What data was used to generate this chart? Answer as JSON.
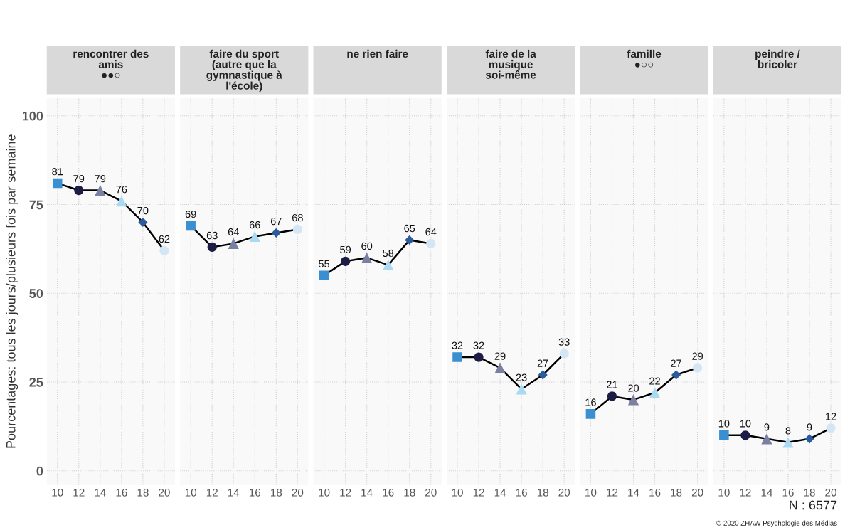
{
  "chart_data": [
    {
      "type": "line",
      "title": "rencontrer des\namis\n●●○",
      "ylabel": "Pourcentages: tous les jours/plusieurs fois par semaine",
      "x": [
        10,
        12,
        14,
        16,
        18,
        20
      ],
      "xlim": [
        9,
        21
      ],
      "xticks": [
        10,
        12,
        14,
        16,
        18,
        20
      ],
      "ylim": [
        -4,
        105
      ],
      "yticks": [
        0,
        25,
        50,
        75,
        100
      ],
      "grid": true,
      "series": [
        {
          "type": "line",
          "color": "#000000",
          "marker": "none",
          "values": [
            81,
            79,
            79,
            76,
            70,
            62
          ]
        },
        {
          "type": "scatter",
          "color": "#3a8fd0",
          "marker": "square",
          "x": [
            10
          ],
          "values": [
            81
          ],
          "value_labels": [
            "81"
          ]
        },
        {
          "type": "scatter",
          "color": "#1c1c45",
          "marker": "circle",
          "x": [
            12
          ],
          "values": [
            79
          ],
          "value_labels": [
            "79"
          ]
        },
        {
          "type": "scatter",
          "color": "#7b80a3",
          "marker": "triangle",
          "x": [
            14
          ],
          "values": [
            79
          ],
          "value_labels": [
            "79"
          ]
        },
        {
          "type": "scatter",
          "color": "#a9daf2",
          "marker": "triangle",
          "x": [
            16
          ],
          "values": [
            76
          ],
          "value_labels": [
            "76"
          ]
        },
        {
          "type": "scatter",
          "color": "#2b5b9b",
          "marker": "diamond",
          "x": [
            18
          ],
          "values": [
            70
          ],
          "value_labels": [
            "70"
          ]
        },
        {
          "type": "scatter",
          "color": "#d4e6f6",
          "marker": "circle",
          "x": [
            20
          ],
          "values": [
            62
          ],
          "value_labels": [
            "62"
          ]
        }
      ]
    },
    {
      "type": "line",
      "title": "faire du sport\n(autre que la\ngymnastique à\nl'école)",
      "x": [
        10,
        12,
        14,
        16,
        18,
        20
      ],
      "xlim": [
        9,
        21
      ],
      "xticks": [
        10,
        12,
        14,
        16,
        18,
        20
      ],
      "ylim": [
        -4,
        105
      ],
      "yticks": [
        0,
        25,
        50,
        75,
        100
      ],
      "grid": true,
      "tick_labels": "x",
      "series": [
        {
          "type": "line",
          "color": "#000000",
          "marker": "none",
          "values": [
            69,
            63,
            64,
            66,
            67,
            68
          ]
        },
        {
          "type": "scatter",
          "color": "#3a8fd0",
          "marker": "square",
          "x": [
            10
          ],
          "values": [
            69
          ],
          "value_labels": [
            "69"
          ]
        },
        {
          "type": "scatter",
          "color": "#1c1c45",
          "marker": "circle",
          "x": [
            12
          ],
          "values": [
            63
          ],
          "value_labels": [
            "63"
          ]
        },
        {
          "type": "scatter",
          "color": "#7b80a3",
          "marker": "triangle",
          "x": [
            14
          ],
          "values": [
            64
          ],
          "value_labels": [
            "64"
          ]
        },
        {
          "type": "scatter",
          "color": "#a9daf2",
          "marker": "triangle",
          "x": [
            16
          ],
          "values": [
            66
          ],
          "value_labels": [
            "66"
          ]
        },
        {
          "type": "scatter",
          "color": "#2b5b9b",
          "marker": "diamond",
          "x": [
            18
          ],
          "values": [
            67
          ],
          "value_labels": [
            "67"
          ]
        },
        {
          "type": "scatter",
          "color": "#d4e6f6",
          "marker": "circle",
          "x": [
            20
          ],
          "values": [
            68
          ],
          "value_labels": [
            "68"
          ]
        }
      ]
    },
    {
      "type": "line",
      "title": "ne rien faire",
      "x": [
        10,
        12,
        14,
        16,
        18,
        20
      ],
      "xlim": [
        9,
        21
      ],
      "xticks": [
        10,
        12,
        14,
        16,
        18,
        20
      ],
      "ylim": [
        -4,
        105
      ],
      "yticks": [
        0,
        25,
        50,
        75,
        100
      ],
      "grid": true,
      "tick_labels": "x",
      "series": [
        {
          "type": "line",
          "color": "#000000",
          "marker": "none",
          "values": [
            55,
            59,
            60,
            58,
            65,
            64
          ]
        },
        {
          "type": "scatter",
          "color": "#3a8fd0",
          "marker": "square",
          "x": [
            10
          ],
          "values": [
            55
          ],
          "value_labels": [
            "55"
          ]
        },
        {
          "type": "scatter",
          "color": "#1c1c45",
          "marker": "circle",
          "x": [
            12
          ],
          "values": [
            59
          ],
          "value_labels": [
            "59"
          ]
        },
        {
          "type": "scatter",
          "color": "#7b80a3",
          "marker": "triangle",
          "x": [
            14
          ],
          "values": [
            60
          ],
          "value_labels": [
            "60"
          ]
        },
        {
          "type": "scatter",
          "color": "#a9daf2",
          "marker": "triangle",
          "x": [
            16
          ],
          "values": [
            58
          ],
          "value_labels": [
            "58"
          ]
        },
        {
          "type": "scatter",
          "color": "#2b5b9b",
          "marker": "diamond",
          "x": [
            18
          ],
          "values": [
            65
          ],
          "value_labels": [
            "65"
          ]
        },
        {
          "type": "scatter",
          "color": "#d4e6f6",
          "marker": "circle",
          "x": [
            20
          ],
          "values": [
            64
          ],
          "value_labels": [
            "64"
          ]
        }
      ]
    },
    {
      "type": "line",
      "title": "faire de la\nmusique\nsoi-même",
      "x": [
        10,
        12,
        14,
        16,
        18,
        20
      ],
      "xlim": [
        9,
        21
      ],
      "xticks": [
        10,
        12,
        14,
        16,
        18,
        20
      ],
      "ylim": [
        -4,
        105
      ],
      "yticks": [
        0,
        25,
        50,
        75,
        100
      ],
      "grid": true,
      "tick_labels": "x",
      "series": [
        {
          "type": "line",
          "color": "#000000",
          "marker": "none",
          "values": [
            32,
            32,
            29,
            23,
            27,
            33
          ]
        },
        {
          "type": "scatter",
          "color": "#3a8fd0",
          "marker": "square",
          "x": [
            10
          ],
          "values": [
            32
          ],
          "value_labels": [
            "32"
          ]
        },
        {
          "type": "scatter",
          "color": "#1c1c45",
          "marker": "circle",
          "x": [
            12
          ],
          "values": [
            32
          ],
          "value_labels": [
            "32"
          ]
        },
        {
          "type": "scatter",
          "color": "#7b80a3",
          "marker": "triangle",
          "x": [
            14
          ],
          "values": [
            29
          ],
          "value_labels": [
            "29"
          ]
        },
        {
          "type": "scatter",
          "color": "#a9daf2",
          "marker": "triangle",
          "x": [
            16
          ],
          "values": [
            23
          ],
          "value_labels": [
            "23"
          ]
        },
        {
          "type": "scatter",
          "color": "#2b5b9b",
          "marker": "diamond",
          "x": [
            18
          ],
          "values": [
            27
          ],
          "value_labels": [
            "27"
          ]
        },
        {
          "type": "scatter",
          "color": "#d4e6f6",
          "marker": "circle",
          "x": [
            20
          ],
          "values": [
            33
          ],
          "value_labels": [
            "33"
          ]
        }
      ]
    },
    {
      "type": "line",
      "title": "famille\n●○○",
      "x": [
        10,
        12,
        14,
        16,
        18,
        20
      ],
      "xlim": [
        9,
        21
      ],
      "xticks": [
        10,
        12,
        14,
        16,
        18,
        20
      ],
      "ylim": [
        -4,
        105
      ],
      "yticks": [
        0,
        25,
        50,
        75,
        100
      ],
      "grid": true,
      "tick_labels": "x",
      "series": [
        {
          "type": "line",
          "color": "#000000",
          "marker": "none",
          "values": [
            16,
            21,
            20,
            22,
            27,
            29
          ]
        },
        {
          "type": "scatter",
          "color": "#3a8fd0",
          "marker": "square",
          "x": [
            10
          ],
          "values": [
            16
          ],
          "value_labels": [
            "16"
          ]
        },
        {
          "type": "scatter",
          "color": "#1c1c45",
          "marker": "circle",
          "x": [
            12
          ],
          "values": [
            21
          ],
          "value_labels": [
            "21"
          ]
        },
        {
          "type": "scatter",
          "color": "#7b80a3",
          "marker": "triangle",
          "x": [
            14
          ],
          "values": [
            20
          ],
          "value_labels": [
            "20"
          ]
        },
        {
          "type": "scatter",
          "color": "#a9daf2",
          "marker": "triangle",
          "x": [
            16
          ],
          "values": [
            22
          ],
          "value_labels": [
            "22"
          ]
        },
        {
          "type": "scatter",
          "color": "#2b5b9b",
          "marker": "diamond",
          "x": [
            18
          ],
          "values": [
            27
          ],
          "value_labels": [
            "27"
          ]
        },
        {
          "type": "scatter",
          "color": "#d4e6f6",
          "marker": "circle",
          "x": [
            20
          ],
          "values": [
            29
          ],
          "value_labels": [
            "29"
          ]
        }
      ]
    },
    {
      "type": "line",
      "title": "peindre /\nbricoler",
      "x": [
        10,
        12,
        14,
        16,
        18,
        20
      ],
      "xlim": [
        9,
        21
      ],
      "xticks": [
        10,
        12,
        14,
        16,
        18,
        20
      ],
      "ylim": [
        -4,
        105
      ],
      "yticks": [
        0,
        25,
        50,
        75,
        100
      ],
      "grid": true,
      "tick_labels": "x",
      "annotations": [
        "N : 6577",
        "© 2020 ZHAW Psychologie des Médias"
      ],
      "series": [
        {
          "type": "line",
          "color": "#000000",
          "marker": "none",
          "values": [
            10,
            10,
            9,
            8,
            9,
            12
          ]
        },
        {
          "type": "scatter",
          "color": "#3a8fd0",
          "marker": "square",
          "x": [
            10
          ],
          "values": [
            10
          ],
          "value_labels": [
            "10"
          ]
        },
        {
          "type": "scatter",
          "color": "#1c1c45",
          "marker": "circle",
          "x": [
            12
          ],
          "values": [
            10
          ],
          "value_labels": [
            "10"
          ]
        },
        {
          "type": "scatter",
          "color": "#7b80a3",
          "marker": "triangle",
          "x": [
            14
          ],
          "values": [
            9
          ],
          "value_labels": [
            "9"
          ]
        },
        {
          "type": "scatter",
          "color": "#a9daf2",
          "marker": "triangle",
          "x": [
            16
          ],
          "values": [
            8
          ],
          "value_labels": [
            "8"
          ]
        },
        {
          "type": "scatter",
          "color": "#2b5b9b",
          "marker": "diamond",
          "x": [
            18
          ],
          "values": [
            9
          ],
          "value_labels": [
            "9"
          ]
        },
        {
          "type": "scatter",
          "color": "#d4e6f6",
          "marker": "circle",
          "x": [
            20
          ],
          "values": [
            12
          ],
          "value_labels": [
            "12"
          ]
        }
      ]
    }
  ]
}
